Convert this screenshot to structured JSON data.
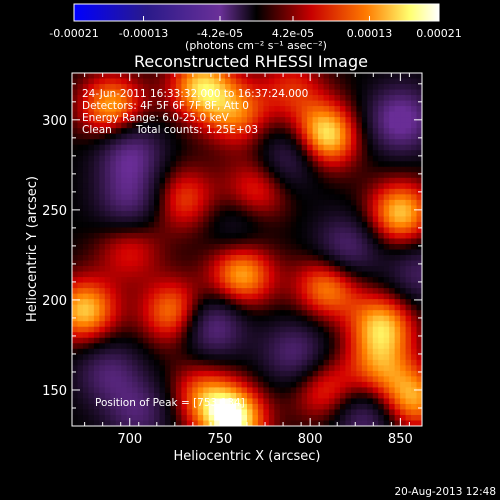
{
  "chart_data": {
    "type": "heatmap",
    "title": "Reconstructed RHESSI Image",
    "xlabel": "Heliocentric X (arcsec)",
    "ylabel": "Heliocentric Y (arcsec)",
    "xlim": [
      668,
      862
    ],
    "ylim": [
      130,
      326
    ],
    "x_ticks": [
      700,
      750,
      800,
      850
    ],
    "y_ticks": [
      150,
      200,
      250,
      300
    ],
    "x_tick_labels": [
      "700",
      "750",
      "800",
      "850"
    ],
    "y_tick_labels": [
      "150",
      "200",
      "250",
      "300"
    ],
    "colorbar": {
      "min": -0.00021,
      "max": 0.00021,
      "tick_labels": [
        "-0.00021",
        "-0.00013",
        "-4.2e-05",
        "4.2e-05",
        "0.00013",
        "0.00021"
      ],
      "tick_values": [
        -0.00021,
        -0.00013,
        -4.2e-05,
        4.2e-05,
        0.00013,
        0.00021
      ],
      "unit_label": "(photons cm⁻² s⁻¹ asec⁻²)",
      "colors": [
        "#0000ff",
        "#3c1e7a",
        "#7a3aa0",
        "#000000",
        "#c80000",
        "#ff7a00",
        "#ffff80",
        "#ffffff"
      ]
    },
    "annotations": {
      "line1": "24-Jun-2011 16:33:32.000 to 16:37:24.000",
      "line2": "Detectors: 4F 5F 6F 7F 8F, Att 0",
      "line3": "Energy Range: 6.0-25.0 keV",
      "line4_left": "Clean",
      "line4_right": "Total counts: 1.25E+03",
      "peak_label": "Position of Peak = [753,134]"
    },
    "peak": {
      "x": 753,
      "y": 134
    },
    "blobs": [
      {
        "x": 757,
        "y": 134,
        "v": 1.0
      },
      {
        "x": 808,
        "y": 291,
        "v": 0.95
      },
      {
        "x": 690,
        "y": 307,
        "v": 0.75
      },
      {
        "x": 740,
        "y": 318,
        "v": 0.8
      },
      {
        "x": 850,
        "y": 248,
        "v": 0.8
      },
      {
        "x": 675,
        "y": 194,
        "v": 0.8
      },
      {
        "x": 725,
        "y": 193,
        "v": 0.7
      },
      {
        "x": 762,
        "y": 214,
        "v": 0.75
      },
      {
        "x": 810,
        "y": 208,
        "v": 0.7
      },
      {
        "x": 840,
        "y": 186,
        "v": 0.75
      },
      {
        "x": 838,
        "y": 162,
        "v": 0.5
      },
      {
        "x": 857,
        "y": 145,
        "v": 0.7
      },
      {
        "x": 808,
        "y": 150,
        "v": 0.5
      },
      {
        "x": 740,
        "y": 148,
        "v": 0.5
      },
      {
        "x": 770,
        "y": 260,
        "v": 0.5
      },
      {
        "x": 760,
        "y": 303,
        "v": 0.55
      },
      {
        "x": 700,
        "y": 228,
        "v": 0.4
      },
      {
        "x": 730,
        "y": 256,
        "v": 0.5
      },
      {
        "x": 790,
        "y": 318,
        "v": 0.4
      },
      {
        "x": 700,
        "y": 282,
        "v": -0.6
      },
      {
        "x": 790,
        "y": 280,
        "v": -0.5
      },
      {
        "x": 850,
        "y": 300,
        "v": -0.7
      },
      {
        "x": 700,
        "y": 255,
        "v": -0.5
      },
      {
        "x": 745,
        "y": 186,
        "v": -0.65
      },
      {
        "x": 820,
        "y": 228,
        "v": -0.55
      },
      {
        "x": 688,
        "y": 160,
        "v": -0.45
      },
      {
        "x": 792,
        "y": 170,
        "v": -0.5
      },
      {
        "x": 830,
        "y": 135,
        "v": -0.5
      },
      {
        "x": 705,
        "y": 138,
        "v": -0.45
      },
      {
        "x": 760,
        "y": 242,
        "v": -0.3
      },
      {
        "x": 860,
        "y": 215,
        "v": -0.4
      }
    ]
  },
  "footer": {
    "date": "20-Aug-2013 12:48"
  }
}
